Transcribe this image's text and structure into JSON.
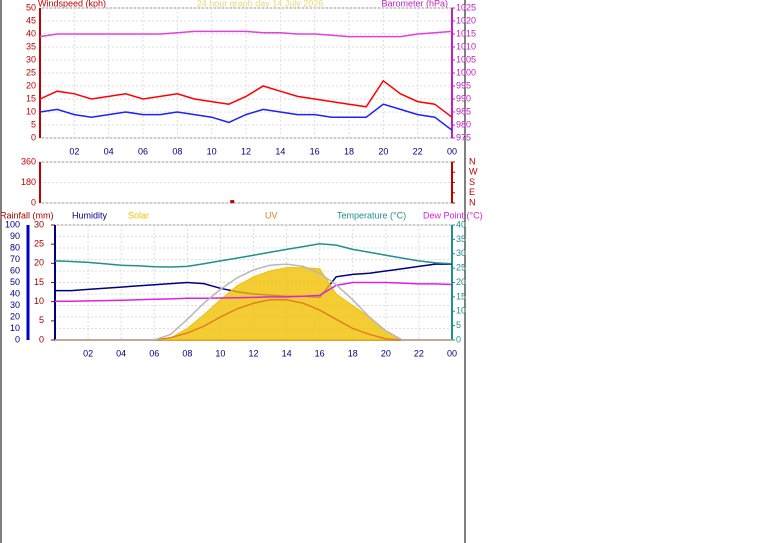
{
  "chart_data": [
    {
      "type": "line",
      "title": "24 hour graph day   14 July 2026",
      "ylabel": "Windspeed (kph)",
      "y2label": "Barometer (hPa)",
      "grid": true,
      "xlim": [
        0,
        24
      ],
      "xticks": [
        {
          "value": 2,
          "label": "02"
        },
        {
          "value": 4,
          "label": "04"
        },
        {
          "value": 6,
          "label": "06"
        },
        {
          "value": 8,
          "label": "08"
        },
        10,
        12,
        14,
        16,
        18,
        20,
        22,
        {
          "value": 24,
          "label": "00"
        }
      ],
      "ylim": [
        0,
        50
      ],
      "yticks": [
        0,
        5,
        10,
        15,
        20,
        25,
        30,
        35,
        40,
        45,
        50
      ],
      "y2lim": [
        975,
        1025
      ],
      "y2ticks": [
        975,
        980,
        985,
        990,
        995,
        1000,
        1005,
        1010,
        1015,
        1020,
        1025
      ],
      "x": [
        0,
        1,
        2,
        3,
        4,
        5,
        6,
        7,
        8,
        9,
        10,
        11,
        12,
        13,
        14,
        15,
        16,
        17,
        18,
        19,
        20,
        21,
        22,
        23,
        24
      ],
      "series": [
        {
          "color": "#ff0000",
          "values": [
            15,
            18,
            17,
            15,
            16,
            17,
            15,
            16,
            17,
            15,
            14,
            13,
            16,
            20,
            18,
            16,
            15,
            14,
            13,
            12,
            22,
            17,
            14,
            13,
            8
          ]
        },
        {
          "color": "#2020ff",
          "values": [
            10,
            11,
            9,
            8,
            9,
            10,
            9,
            9,
            10,
            9,
            8,
            6,
            9,
            11,
            10,
            9,
            9,
            8,
            8,
            8,
            13,
            11,
            9,
            8,
            3
          ]
        },
        {
          "color": "#e040e0",
          "axis": "y2",
          "values": [
            1014,
            1015,
            1015,
            1015,
            1015,
            1015,
            1015,
            1015,
            1015.5,
            1016,
            1016,
            1016,
            1016,
            1015.5,
            1015.5,
            1015,
            1015,
            1014.5,
            1014,
            1014,
            1014,
            1014,
            1015,
            1015.5,
            1016
          ]
        }
      ]
    },
    {
      "type": "scatter",
      "grid": true,
      "xlim": [
        0,
        24
      ],
      "ylim": [
        0,
        360
      ],
      "yticks": [
        0,
        180,
        360
      ],
      "y2ticks": [
        {
          "value": 360,
          "label": "N"
        },
        {
          "value": 270,
          "label": "W"
        },
        {
          "value": 180,
          "label": "S"
        },
        {
          "value": 90,
          "label": "E"
        },
        {
          "value": 0,
          "label": "N"
        }
      ],
      "x": [
        11.2
      ],
      "series": [
        {
          "color": "#c00000",
          "values": [
            8
          ]
        }
      ]
    },
    {
      "type": "line",
      "grid": true,
      "xlim": [
        0,
        24
      ],
      "xticks": [
        {
          "value": 2,
          "label": "02"
        },
        {
          "value": 4,
          "label": "04"
        },
        {
          "value": 6,
          "label": "06"
        },
        {
          "value": 8,
          "label": "08"
        },
        10,
        12,
        14,
        16,
        18,
        20,
        22,
        {
          "value": 24,
          "label": "00"
        }
      ],
      "ylim": [
        0,
        100
      ],
      "yticks": [
        0,
        10,
        20,
        30,
        40,
        50,
        60,
        70,
        80,
        90,
        100
      ],
      "rainlim": [
        0,
        30
      ],
      "rainticks": [
        0,
        5,
        10,
        15,
        20,
        25,
        30
      ],
      "y2lim": [
        0,
        40
      ],
      "y2ticks": [
        0,
        5,
        10,
        15,
        20,
        25,
        30,
        35,
        40
      ],
      "x": [
        0,
        1,
        2,
        3,
        4,
        5,
        6,
        7,
        8,
        9,
        10,
        11,
        12,
        13,
        14,
        15,
        16,
        17,
        18,
        19,
        20,
        21,
        22,
        23,
        24
      ],
      "series": [
        {
          "name": "Rainfall (mm)",
          "color": "#a00000",
          "axis": "rain",
          "values": [
            0,
            0,
            0,
            0,
            0,
            0,
            0,
            0,
            0,
            0,
            0,
            0,
            0,
            0,
            0,
            0,
            0,
            0,
            0,
            0,
            0,
            0,
            0,
            0,
            0
          ]
        },
        {
          "name": "Humidity",
          "color": "#000080",
          "values": [
            43,
            43,
            44,
            45,
            46,
            47,
            48,
            49,
            50,
            49,
            45,
            42,
            40,
            39,
            38,
            38,
            37,
            55,
            57,
            58,
            60,
            62,
            64,
            66,
            66
          ]
        },
        {
          "name": "Solar",
          "color": "#f0c000",
          "area": true,
          "values": [
            0,
            0,
            0,
            0,
            0,
            0,
            0,
            2,
            10,
            22,
            35,
            47,
            55,
            60,
            63,
            63,
            62,
            40,
            30,
            20,
            8,
            0,
            0,
            0,
            0
          ]
        },
        {
          "name": "UV",
          "color": "#e08020",
          "values": [
            0,
            0,
            0,
            0,
            0,
            0,
            0,
            2,
            6,
            12,
            20,
            27,
            32,
            35,
            35,
            32,
            26,
            18,
            10,
            5,
            1,
            0,
            0,
            0,
            0
          ]
        },
        {
          "name": "Temperature (°C)",
          "color": "#208f8f",
          "axis": "y2",
          "values": [
            27.5,
            27.3,
            27,
            26.5,
            26,
            25.8,
            25.5,
            25.4,
            25.6,
            26.5,
            27.5,
            28.5,
            29.5,
            30.5,
            31.5,
            32.5,
            33.5,
            33,
            31.5,
            30.5,
            29.5,
            28.5,
            27.5,
            26.8,
            26.5
          ]
        },
        {
          "name": "Dew Point (°C)",
          "color": "#e020e0",
          "axis": "y2",
          "values": [
            13.5,
            13.5,
            13.6,
            13.7,
            13.8,
            14,
            14.2,
            14.3,
            14.5,
            14.5,
            14.6,
            14.7,
            14.8,
            15,
            15,
            15.2,
            15.5,
            19,
            20,
            20,
            20,
            19.8,
            19.5,
            19.5,
            19.3
          ]
        },
        {
          "color": "#b8b8b8",
          "values": [
            0,
            0,
            0,
            0,
            0,
            0,
            0,
            5,
            18,
            32,
            44,
            54,
            61,
            65,
            66,
            64,
            58,
            48,
            35,
            20,
            8,
            0,
            0,
            0,
            0
          ]
        }
      ]
    }
  ]
}
